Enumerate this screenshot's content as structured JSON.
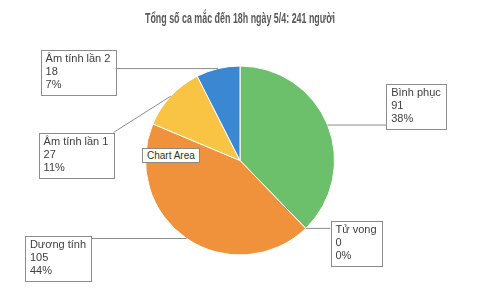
{
  "chart_data": {
    "type": "pie",
    "title": "Tổng số ca mắc đến 18h ngày 5/4: 241 người",
    "categories": [
      "Bình phục",
      "Tử vong",
      "Dương tính",
      "Âm tính lần 1",
      "Âm tính lần 2"
    ],
    "values": [
      91,
      0,
      105,
      27,
      18
    ],
    "percents": [
      38,
      0,
      44,
      11,
      7
    ],
    "percent_labels": [
      "38%",
      "0%",
      "44%",
      "11%",
      "7%"
    ],
    "colors": [
      "#6cbf6b",
      "#a5a5a5",
      "#f0913b",
      "#f9c443",
      "#3b87d1"
    ],
    "data_labels": true,
    "legend": false,
    "annotation": "Chart Area"
  }
}
